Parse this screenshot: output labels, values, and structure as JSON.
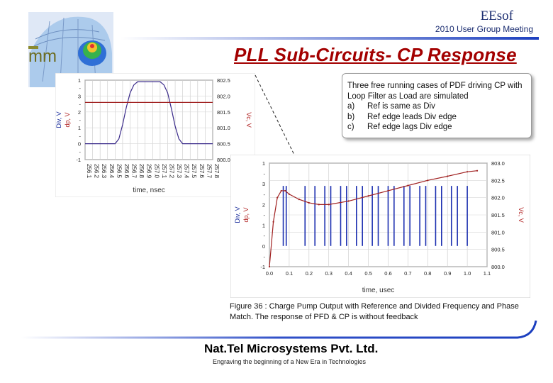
{
  "header": {
    "brand": "EEsof",
    "event": "2010 User Group Meeting",
    "slide_title": "PLL Sub-Circuits- CP Response",
    "accent_color": "#a30000",
    "brand_color": "#1a2c70"
  },
  "callout": {
    "intro": "Three free running cases of PDF driving CP with Loop Filter as Load are simulated",
    "items": [
      {
        "marker": "a)",
        "text": "Ref is same as Div"
      },
      {
        "marker": "b)",
        "text": "Ref edge leads Div edge"
      },
      {
        "marker": "c)",
        "text": "Ref edge lags Div edge"
      }
    ]
  },
  "caption": "Figure 36 : Charge Pump Output with Reference and Divided Frequency and Phase Match. The response of PFD & CP is without feedback",
  "footer": {
    "company": "Nat.Tel Microsystems Pvt. Ltd.",
    "tagline": "Engraving the beginning of a New Era in Technologies"
  },
  "chart_data": [
    {
      "type": "line",
      "title": "",
      "xlabel": "time, nsec",
      "ylabel_left": [
        "Div, V",
        "dp, V"
      ],
      "ylabel_right": "Vc, V",
      "x_ticks": [
        "256.1",
        "256.2",
        "256.3",
        "256.4",
        "256.5",
        "256.6",
        "256.7",
        "256.8",
        "256.9",
        "257.0",
        "257.1",
        "257.2",
        "257.3",
        "257.4",
        "257.5",
        "257.6",
        "257.7",
        "257.8"
      ],
      "x_range": [
        256.1,
        257.8
      ],
      "y_left_ticks": [
        "1",
        "-",
        "3",
        "-",
        "2",
        "-",
        "1",
        "-",
        "0",
        "-",
        "-1"
      ],
      "y_left_range": [
        -1,
        4
      ],
      "y_right_ticks": [
        "802.5",
        "802.0",
        "801.5",
        "801.0",
        "800.5",
        "800.0"
      ],
      "y_right_range": [
        800.0,
        802.5
      ],
      "series": [
        {
          "name": "Div / dp pulse",
          "color": "#3a2a8a",
          "x": [
            256.1,
            256.2,
            256.3,
            256.4,
            256.5,
            256.55,
            256.6,
            256.65,
            256.7,
            256.75,
            256.8,
            256.9,
            257.0,
            257.1,
            257.15,
            257.2,
            257.25,
            257.3,
            257.35,
            257.4,
            257.5,
            257.6,
            257.7,
            257.8
          ],
          "y": [
            0,
            0,
            0,
            0,
            0,
            0.3,
            1.2,
            2.3,
            3.2,
            3.7,
            3.9,
            3.9,
            3.9,
            3.9,
            3.7,
            3.2,
            2.2,
            1.1,
            0.3,
            0,
            0,
            0,
            0,
            0
          ]
        },
        {
          "name": "Vc",
          "color": "#a02020",
          "x": [
            256.1,
            257.8
          ],
          "y": [
            801.8,
            801.8
          ]
        }
      ]
    },
    {
      "type": "line",
      "title": "",
      "xlabel": "time, usec",
      "ylabel_left": [
        "Div, V",
        "dp, V"
      ],
      "ylabel_right": "Vc, V",
      "x_ticks": [
        "0.0",
        "0.1",
        "0.2",
        "0.3",
        "0.4",
        "0.5",
        "0.6",
        "0.7",
        "0.8",
        "0.9",
        "1.0",
        "1.1"
      ],
      "x_range": [
        0.0,
        1.1
      ],
      "y_left_ticks": [
        "1",
        "-",
        "3",
        "-",
        "2",
        "-",
        "1",
        "-",
        "0",
        "-",
        "-1"
      ],
      "y_left_range": [
        -1,
        4
      ],
      "y_right_ticks": [
        "803.0",
        "802.5",
        "802.0",
        "801.5",
        "801.0",
        "800.5",
        "800.0"
      ],
      "y_right_range": [
        800.0,
        803.0
      ],
      "pulse_times": [
        0.07,
        0.085,
        0.18,
        0.23,
        0.28,
        0.31,
        0.36,
        0.39,
        0.44,
        0.47,
        0.52,
        0.55,
        0.6,
        0.63,
        0.68,
        0.71,
        0.76,
        0.79,
        0.84,
        0.87,
        0.92,
        0.95,
        1.0
      ],
      "series": [
        {
          "name": "Vc",
          "color": "#a02020",
          "x": [
            0.0,
            0.02,
            0.04,
            0.06,
            0.08,
            0.1,
            0.15,
            0.2,
            0.25,
            0.3,
            0.4,
            0.5,
            0.6,
            0.7,
            0.8,
            0.9,
            1.0,
            1.05
          ],
          "y": [
            800.0,
            801.3,
            802.0,
            802.2,
            802.2,
            802.1,
            801.95,
            801.85,
            801.8,
            801.8,
            801.9,
            802.05,
            802.2,
            802.35,
            802.5,
            802.62,
            802.75,
            802.78
          ]
        }
      ]
    }
  ]
}
